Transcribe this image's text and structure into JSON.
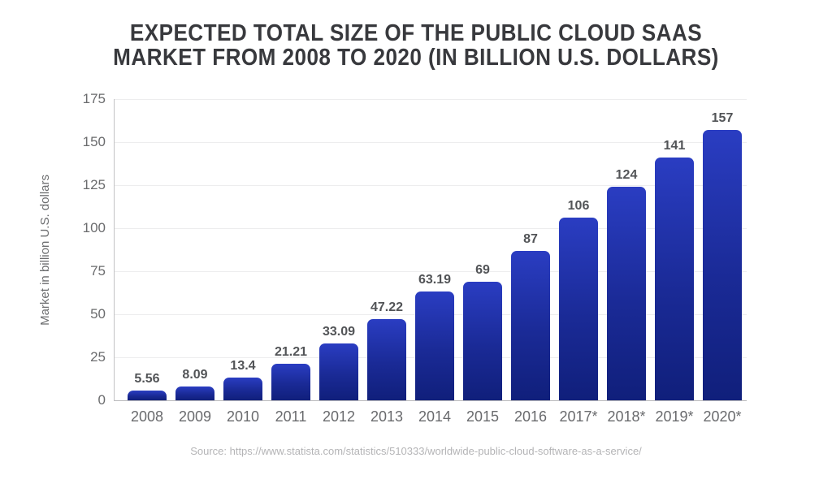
{
  "header": {
    "title_lines": [
      "EXPECTED TOTAL SIZE OF THE PUBLIC CLOUD SAAS",
      "MARKET FROM 2008 TO 2020 (IN BILLION U.S. DOLLARS)"
    ]
  },
  "chart_data": {
    "type": "bar",
    "title": "EXPECTED TOTAL SIZE OF THE PUBLIC CLOUD SAAS MARKET FROM 2008 TO 2020 (IN BILLION U.S. DOLLARS)",
    "categories": [
      "2008",
      "2009",
      "2010",
      "2011",
      "2012",
      "2013",
      "2014",
      "2015",
      "2016",
      "2017*",
      "2018*",
      "2019*",
      "2020*"
    ],
    "values": [
      5.56,
      8.09,
      13.4,
      21.21,
      33.09,
      47.22,
      63.19,
      69,
      87,
      106,
      124,
      141,
      157
    ],
    "value_labels": [
      "5.56",
      "8.09",
      "13.4",
      "21.21",
      "33.09",
      "47.22",
      "63.19",
      "69",
      "87",
      "106",
      "124",
      "141",
      "157"
    ],
    "xlabel": "",
    "ylabel": "Market in billion U.S. dollars",
    "ylim": [
      0,
      175
    ],
    "yticks": [
      175,
      150,
      125,
      100,
      75,
      50,
      25,
      0
    ],
    "grid": true,
    "legend": false,
    "colors": {
      "bar_gradient_top": "#2a3dc2",
      "bar_gradient_bottom": "#101f7b",
      "title_text": "#38393d",
      "value_label_text": "#525457",
      "axis_tick_text": "#6b6c6e",
      "gridline": "#ededee",
      "axis_line": "#b9b9bb",
      "source_text": "#b4b4b6",
      "background": "#ffffff"
    }
  },
  "footer": {
    "source": "Source: https://www.statista.com/statistics/510333/worldwide-public-cloud-software-as-a-service/"
  }
}
